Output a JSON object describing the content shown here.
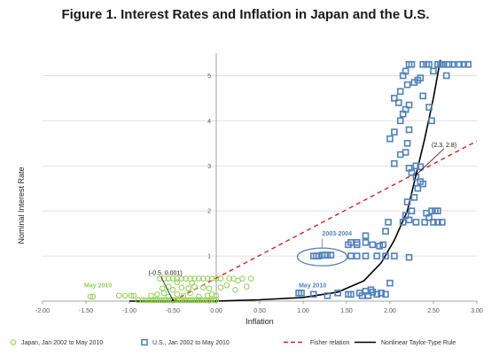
{
  "chart_data": {
    "type": "scatter",
    "title": "Figure 1.  Interest Rates and Inflation in Japan and the U.S.",
    "xlabel": "Inflation",
    "ylabel": "Nominal Interest Rate",
    "xlim": [
      -2.0,
      3.0
    ],
    "ylim": [
      0,
      5.5
    ],
    "x_ticks": [
      "-2.00",
      "-1.50",
      "-1.00",
      "-0.50",
      "0.00",
      "0.50",
      "1.00",
      "1.50",
      "2.00",
      "2.50",
      "3.00"
    ],
    "y_ticks": [
      "0",
      "1",
      "2",
      "3",
      "4",
      "5"
    ],
    "legend": {
      "position": "bottom",
      "entries": [
        {
          "label": "Japan, Jan 2002 to May 2010",
          "color": "#92d050",
          "marker": "circle"
        },
        {
          "label": "U.S., Jan 2002 to May 2010",
          "color": "#4f81bd",
          "marker": "square"
        },
        {
          "label": "Fisher relation",
          "color": "#e41a1c",
          "style": "dashed"
        },
        {
          "label": "Nonlinear Taylor-Type Rule",
          "color": "#000000",
          "style": "solid"
        }
      ]
    },
    "series": [
      {
        "name": "Japan, Jan 2002 to May 2010",
        "marker": "circle",
        "color": "#92d050",
        "points": [
          [
            -1.45,
            0.1
          ],
          [
            -1.42,
            0.1
          ],
          [
            -1.12,
            0.12
          ],
          [
            -1.05,
            0.12
          ],
          [
            -0.98,
            0.12
          ],
          [
            -0.95,
            0.12
          ],
          [
            -0.9,
            0.02
          ],
          [
            -0.85,
            0.02
          ],
          [
            -0.82,
            0.02
          ],
          [
            -0.78,
            0.02
          ],
          [
            -0.75,
            0.02
          ],
          [
            -0.72,
            0.02
          ],
          [
            -0.7,
            0.02
          ],
          [
            -0.68,
            0.02
          ],
          [
            -0.65,
            0.02
          ],
          [
            -0.62,
            0.02
          ],
          [
            -0.6,
            0.02
          ],
          [
            -0.58,
            0.02
          ],
          [
            -0.55,
            0.02
          ],
          [
            -0.52,
            0.02
          ],
          [
            -0.5,
            0.02
          ],
          [
            -0.48,
            0.02
          ],
          [
            -0.45,
            0.02
          ],
          [
            -0.42,
            0.02
          ],
          [
            -0.4,
            0.02
          ],
          [
            -0.38,
            0.02
          ],
          [
            -0.35,
            0.02
          ],
          [
            -0.32,
            0.02
          ],
          [
            -0.3,
            0.02
          ],
          [
            -0.28,
            0.02
          ],
          [
            -0.25,
            0.02
          ],
          [
            -0.22,
            0.02
          ],
          [
            -0.2,
            0.02
          ],
          [
            -0.18,
            0.02
          ],
          [
            -0.15,
            0.02
          ],
          [
            -0.12,
            0.02
          ],
          [
            -0.1,
            0.02
          ],
          [
            -0.08,
            0.02
          ],
          [
            -0.05,
            0.02
          ],
          [
            -0.02,
            0.02
          ],
          [
            0.0,
            0.02
          ],
          [
            -0.75,
            0.12
          ],
          [
            -0.68,
            0.15
          ],
          [
            -0.6,
            0.18
          ],
          [
            -0.55,
            0.1
          ],
          [
            -0.45,
            0.15
          ],
          [
            -0.38,
            0.12
          ],
          [
            -0.3,
            0.18
          ],
          [
            -0.2,
            0.1
          ],
          [
            -0.1,
            0.12
          ],
          [
            -0.05,
            0.15
          ],
          [
            0.0,
            0.12
          ],
          [
            -0.62,
            0.28
          ],
          [
            -0.55,
            0.32
          ],
          [
            -0.5,
            0.25
          ],
          [
            -0.4,
            0.3
          ],
          [
            -0.32,
            0.28
          ],
          [
            -0.25,
            0.32
          ],
          [
            -0.15,
            0.3
          ],
          [
            -0.08,
            0.28
          ],
          [
            0.05,
            0.3
          ],
          [
            -0.65,
            0.5
          ],
          [
            -0.6,
            0.5
          ],
          [
            -0.55,
            0.5
          ],
          [
            -0.5,
            0.5
          ],
          [
            -0.45,
            0.5
          ],
          [
            -0.4,
            0.5
          ],
          [
            -0.35,
            0.5
          ],
          [
            -0.3,
            0.5
          ],
          [
            -0.25,
            0.5
          ],
          [
            -0.2,
            0.5
          ],
          [
            -0.15,
            0.5
          ],
          [
            -0.1,
            0.5
          ],
          [
            -0.05,
            0.5
          ],
          [
            0.0,
            0.5
          ],
          [
            0.05,
            0.5
          ],
          [
            0.15,
            0.5
          ],
          [
            0.2,
            0.5
          ],
          [
            0.25,
            0.45
          ],
          [
            0.3,
            0.5
          ],
          [
            0.4,
            0.5
          ],
          [
            0.12,
            0.35
          ],
          [
            0.22,
            0.25
          ],
          [
            0.35,
            0.32
          ],
          [
            -0.45,
            0.42
          ],
          [
            -0.28,
            0.4
          ]
        ]
      },
      {
        "name": "U.S., Jan 2002 to May 2010",
        "marker": "square",
        "color": "#4f81bd",
        "points": [
          [
            0.95,
            0.18
          ],
          [
            0.98,
            0.18
          ],
          [
            1.12,
            0.15
          ],
          [
            1.28,
            0.12
          ],
          [
            1.4,
            0.18
          ],
          [
            1.52,
            0.15
          ],
          [
            1.55,
            0.15
          ],
          [
            1.65,
            0.18
          ],
          [
            1.72,
            0.22
          ],
          [
            1.75,
            0.12
          ],
          [
            1.8,
            0.2
          ],
          [
            1.85,
            0.15
          ],
          [
            1.9,
            0.18
          ],
          [
            1.95,
            0.15
          ],
          [
            2.0,
            0.4
          ],
          [
            1.78,
            0.25
          ],
          [
            1.68,
            0.12
          ],
          [
            1.12,
            1.0
          ],
          [
            1.15,
            1.0
          ],
          [
            1.18,
            1.0
          ],
          [
            1.22,
            1.02
          ],
          [
            1.25,
            1.02
          ],
          [
            1.28,
            1.02
          ],
          [
            1.32,
            1.02
          ],
          [
            1.55,
            1.0
          ],
          [
            1.62,
            1.0
          ],
          [
            1.72,
            1.0
          ],
          [
            1.85,
            1.0
          ],
          [
            1.95,
            1.0
          ],
          [
            2.05,
            1.0
          ],
          [
            2.22,
            0.97
          ],
          [
            1.52,
            1.25
          ],
          [
            1.62,
            1.25
          ],
          [
            1.72,
            1.3
          ],
          [
            1.8,
            1.25
          ],
          [
            1.88,
            1.22
          ],
          [
            1.92,
            1.25
          ],
          [
            1.95,
            1.55
          ],
          [
            1.98,
            1.75
          ],
          [
            1.72,
            1.45
          ],
          [
            1.62,
            1.3
          ],
          [
            1.55,
            1.3
          ],
          [
            2.15,
            1.75
          ],
          [
            2.22,
            1.8
          ],
          [
            2.3,
            1.75
          ],
          [
            2.4,
            1.75
          ],
          [
            2.5,
            1.75
          ],
          [
            2.55,
            1.75
          ],
          [
            2.6,
            1.75
          ],
          [
            2.42,
            1.95
          ],
          [
            2.48,
            2.0
          ],
          [
            2.52,
            2.0
          ],
          [
            2.55,
            2.0
          ],
          [
            2.45,
            1.85
          ],
          [
            2.18,
            1.9
          ],
          [
            2.25,
            2.0
          ],
          [
            2.2,
            2.2
          ],
          [
            2.28,
            2.3
          ],
          [
            2.32,
            2.5
          ],
          [
            2.35,
            2.65
          ],
          [
            2.38,
            2.6
          ],
          [
            2.3,
            2.75
          ],
          [
            2.25,
            2.85
          ],
          [
            2.22,
            2.95
          ],
          [
            2.3,
            3.0
          ],
          [
            2.35,
            2.98
          ],
          [
            2.05,
            3.05
          ],
          [
            2.12,
            3.25
          ],
          [
            2.18,
            3.3
          ],
          [
            2.2,
            3.5
          ],
          [
            2.22,
            3.8
          ],
          [
            2.0,
            3.6
          ],
          [
            2.05,
            3.75
          ],
          [
            2.12,
            4.0
          ],
          [
            2.15,
            4.15
          ],
          [
            2.18,
            4.25
          ],
          [
            2.22,
            4.35
          ],
          [
            2.1,
            4.4
          ],
          [
            2.05,
            4.5
          ],
          [
            2.12,
            4.65
          ],
          [
            2.2,
            4.8
          ],
          [
            2.28,
            4.85
          ],
          [
            2.32,
            4.9
          ],
          [
            2.38,
            4.55
          ],
          [
            2.45,
            4.3
          ],
          [
            2.48,
            4.0
          ],
          [
            2.35,
            4.95
          ],
          [
            2.15,
            5.0
          ],
          [
            2.18,
            5.1
          ],
          [
            2.22,
            5.25
          ],
          [
            2.25,
            5.25
          ],
          [
            2.38,
            5.25
          ],
          [
            2.42,
            5.25
          ],
          [
            2.45,
            5.25
          ],
          [
            2.5,
            5.1
          ],
          [
            2.55,
            5.25
          ],
          [
            2.58,
            5.25
          ],
          [
            2.6,
            5.25
          ],
          [
            2.62,
            5.25
          ],
          [
            2.65,
            5.0
          ],
          [
            2.68,
            5.25
          ],
          [
            2.72,
            5.25
          ],
          [
            2.8,
            5.25
          ],
          [
            2.85,
            5.25
          ],
          [
            2.9,
            5.25
          ]
        ]
      }
    ],
    "lines": [
      {
        "name": "Fisher relation",
        "color": "#e41a1c",
        "style": "dashed",
        "points": [
          [
            -0.5,
            0.001
          ],
          [
            3.0,
            3.55
          ]
        ]
      },
      {
        "name": "Nonlinear Taylor-Type Rule",
        "color": "#000000",
        "style": "solid",
        "points": [
          [
            -1.0,
            0.0
          ],
          [
            0.0,
            0.0
          ],
          [
            0.5,
            0.03
          ],
          [
            1.0,
            0.08
          ],
          [
            1.4,
            0.2
          ],
          [
            1.7,
            0.45
          ],
          [
            1.9,
            0.85
          ],
          [
            2.05,
            1.35
          ],
          [
            2.2,
            2.0
          ],
          [
            2.3,
            2.8
          ],
          [
            2.4,
            3.6
          ],
          [
            2.5,
            4.5
          ],
          [
            2.58,
            5.35
          ]
        ]
      }
    ],
    "annotations": [
      {
        "text": "(-0.5, 0.001)",
        "x": -0.78,
        "y": 0.58,
        "arrow_to": [
          -0.5,
          0.02
        ]
      },
      {
        "text": "(2.3, 2.8)",
        "x": 2.48,
        "y": 3.42,
        "arrow_to": [
          2.3,
          2.8
        ]
      },
      {
        "text": "2003-2004",
        "x": 1.22,
        "y": 1.45,
        "color": "#4f81bd",
        "ellipse": true
      },
      {
        "text": "May 2010",
        "x": -1.52,
        "y": 0.3,
        "color": "#92d050"
      },
      {
        "text": "May 2010",
        "x": 0.95,
        "y": 0.3,
        "color": "#4f81bd"
      }
    ]
  }
}
